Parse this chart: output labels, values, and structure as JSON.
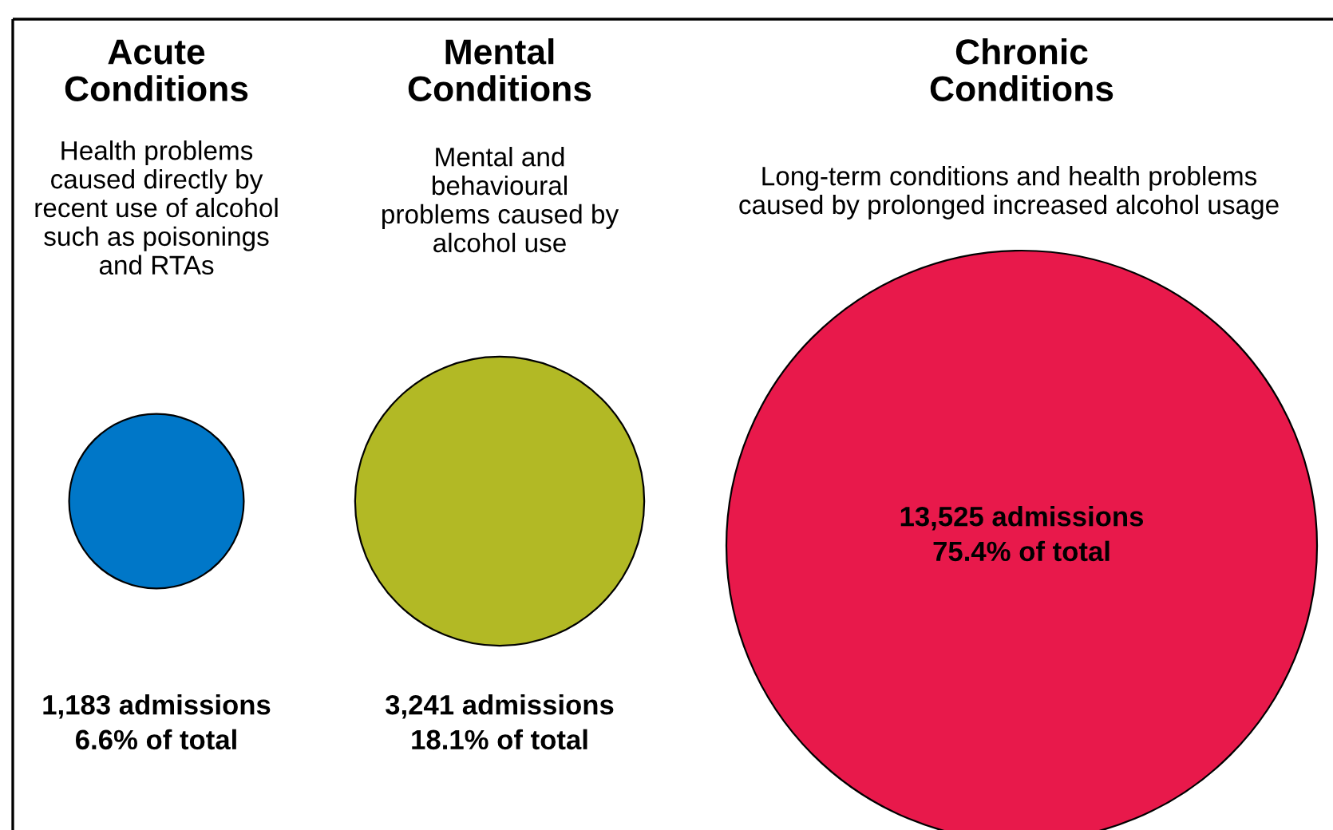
{
  "chart_data": {
    "type": "other",
    "categories": [
      "Acute\nConditions",
      "Mental\nConditions",
      "Chronic\nConditions"
    ],
    "values": [
      1183,
      3241,
      13525
    ],
    "colors": [
      "#0077c8",
      "#b2b925",
      "#e8194b"
    ],
    "value_labels": [
      "1,183 admissions\n6.6% of total",
      "3,241 admissions\n18.1% of total",
      "13,525 admissions\n75.4% of total"
    ],
    "annotations": [
      "Health problems\ncaused directly by\nrecent use of alcohol\nsuch as poisonings\nand RTAs",
      "Mental and\nbehavioural\nproblems caused by\nalcohol use",
      "Long-term conditions and health problems\ncaused by prolonged increased alcohol usage"
    ]
  }
}
